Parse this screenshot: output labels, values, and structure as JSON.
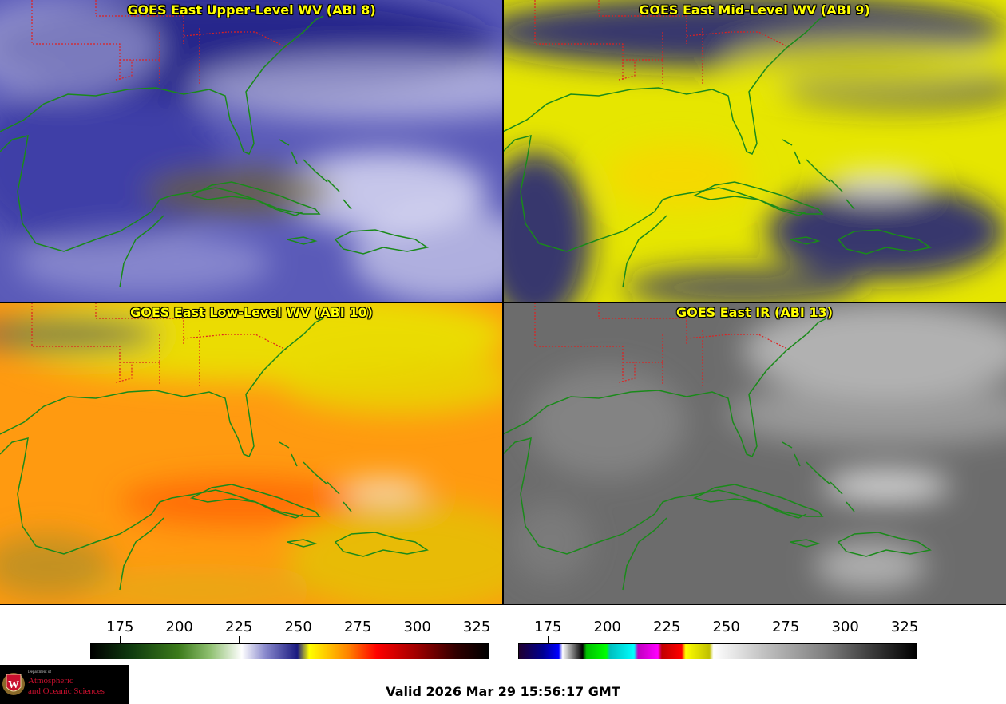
{
  "panels": [
    {
      "id": "p1",
      "title": "GOES East Upper-Level WV (ABI 8)",
      "palette": "wv-upper"
    },
    {
      "id": "p2",
      "title": "GOES East Mid-Level WV (ABI 9)",
      "palette": "wv-mid"
    },
    {
      "id": "p3",
      "title": "GOES East Low-Level WV (ABI 10)",
      "palette": "wv-low"
    },
    {
      "id": "p4",
      "title": "GOES East IR (ABI 13)",
      "palette": "ir"
    }
  ],
  "colorbars": {
    "wv": {
      "ticks": [
        "175",
        "200",
        "225",
        "250",
        "275",
        "300",
        "325"
      ],
      "min": 162.5,
      "max": 330
    },
    "ir": {
      "ticks": [
        "175",
        "200",
        "225",
        "250",
        "275",
        "300",
        "325"
      ],
      "min": 162.5,
      "max": 330
    }
  },
  "footer": {
    "valid_text": "Valid 2026 Mar 29 15:56:17 GMT"
  },
  "logo": {
    "dept": "Department of",
    "line1": "Atmospheric",
    "line2": "and Oceanic Sciences",
    "icon": "uw-crest-icon"
  },
  "colors": {
    "title": "#ffff00",
    "coast": "#1a8a1a",
    "border": "#e02020"
  }
}
